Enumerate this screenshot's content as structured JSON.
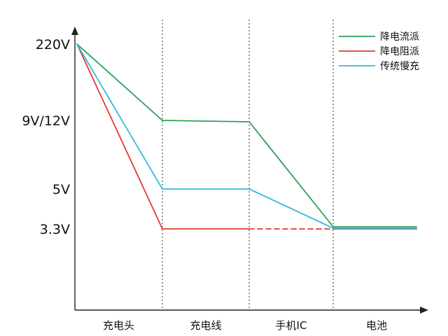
{
  "chart_data": {
    "type": "line",
    "title": "",
    "xlabel": "",
    "ylabel": "",
    "categories": [
      "充电头",
      "充电线",
      "手机IC",
      "电池"
    ],
    "y_ticks": [
      "220V",
      "9V/12V",
      "5V",
      "3.3V"
    ],
    "grid": "vertical dotted separators between categories",
    "legend_position": "top-right",
    "series": [
      {
        "name": "降电流派",
        "color": "#2ca05a",
        "points": [
          [
            "220V",
            "220V"
          ],
          [
            "充电头|充电线",
            "9V/12V"
          ],
          [
            "充电线|手机IC",
            "9V/12V"
          ],
          [
            "手机IC|电池",
            "3.3V"
          ],
          [
            "电池 end",
            "3.3V"
          ]
        ]
      },
      {
        "name": "降电阻派",
        "color": "#e03c31",
        "dashed_segment": [
          "充电线|手机IC",
          "手机IC|电池"
        ],
        "points": [
          [
            "220V",
            "220V"
          ],
          [
            "充电头|充电线",
            "3.3V"
          ],
          [
            "充电线|手机IC",
            "3.3V"
          ],
          [
            "手机IC|电池",
            "3.3V"
          ],
          [
            "电池 end",
            "3.3V"
          ]
        ]
      },
      {
        "name": "传统慢充",
        "color": "#33bbdd",
        "points": [
          [
            "220V",
            "220V"
          ],
          [
            "充电头|充电线",
            "5V"
          ],
          [
            "充电线|手机IC",
            "5V"
          ],
          [
            "手机IC|电池",
            "3.3V"
          ],
          [
            "电池 end",
            "3.3V"
          ]
        ]
      }
    ]
  }
}
